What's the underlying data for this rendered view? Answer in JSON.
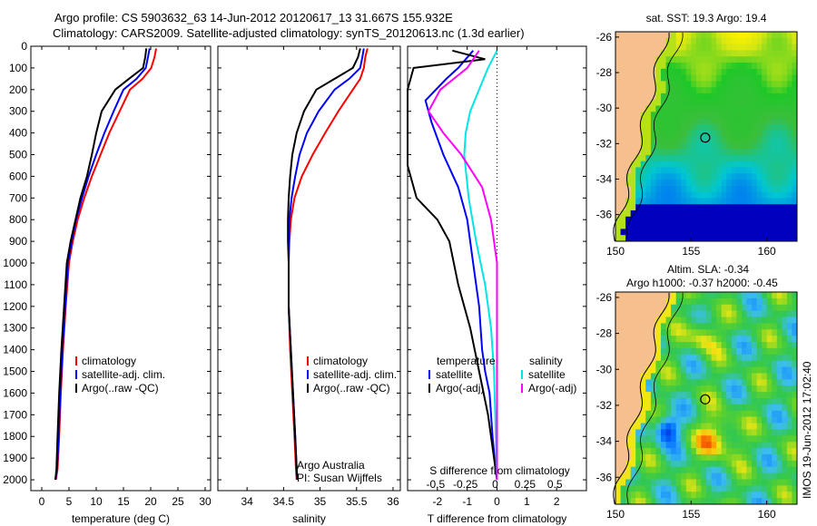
{
  "header": {
    "line1": "Argo profile: CS 5903632_63 14-Jun-2012 20120617_13 31.667S 155.932E",
    "line2": "Climatology: CARS2009. Satellite-adjusted climatology: synTS_20120613.nc (1.3d earlier)"
  },
  "colors": {
    "climatology": "#ff0000",
    "satellite": "#0000ff",
    "argo": "#000000",
    "sal_satellite": "#00e5e5",
    "sal_argo": "#ff00ff",
    "land": "#f5c08e"
  },
  "chart_data": [
    {
      "type": "line",
      "id": "temperature",
      "xlabel": "temperature (deg C)",
      "ylabel": "",
      "xlim": [
        -2,
        31
      ],
      "ylim": [
        0,
        2050
      ],
      "xticks": [
        0,
        5,
        10,
        15,
        20,
        25,
        30
      ],
      "yticks": [
        0,
        100,
        200,
        300,
        400,
        500,
        600,
        700,
        800,
        900,
        1000,
        1100,
        1200,
        1300,
        1400,
        1500,
        1600,
        1700,
        1800,
        1900,
        2000
      ],
      "legend": [
        "climatology",
        "satellite-adj. clim.",
        "Argo(..raw -QC)"
      ],
      "series": [
        {
          "name": "climatology",
          "color": "#ff0000",
          "x": [
            21,
            20.7,
            20.1,
            18.5,
            16.2,
            14.3,
            12.4,
            10.8,
            9.2,
            7.8,
            6.6,
            5.7,
            5,
            4.4,
            3.9,
            3.5,
            3.2,
            2.9,
            2.6
          ],
          "y": [
            10,
            50,
            100,
            150,
            200,
            300,
            400,
            500,
            600,
            700,
            800,
            900,
            1000,
            1200,
            1400,
            1600,
            1800,
            1950,
            2000
          ]
        },
        {
          "name": "satellite-adj. clim.",
          "color": "#0000ff",
          "x": [
            19.8,
            19.5,
            19.1,
            17.4,
            15,
            13.2,
            11.5,
            10,
            8.6,
            7.4,
            6.3,
            5.5,
            4.8,
            4.3,
            3.8,
            3.4,
            3.1,
            2.8,
            2.5
          ],
          "y": [
            10,
            50,
            100,
            150,
            200,
            300,
            400,
            500,
            600,
            700,
            800,
            900,
            1000,
            1200,
            1400,
            1600,
            1800,
            1950,
            2000
          ]
        },
        {
          "name": "Argo(..raw -QC)",
          "color": "#000000",
          "x": [
            19.2,
            19,
            18.6,
            16,
            13.5,
            11,
            10,
            9.2,
            8.3,
            7.1,
            6.2,
            5.3,
            4.6,
            4.1,
            3.6,
            3.2,
            2.9,
            2.7,
            2.5
          ],
          "y": [
            10,
            50,
            100,
            150,
            200,
            300,
            400,
            500,
            600,
            700,
            800,
            900,
            1000,
            1200,
            1400,
            1600,
            1800,
            1950,
            2000
          ]
        }
      ]
    },
    {
      "type": "line",
      "id": "salinity",
      "xlabel": "salinity",
      "ylabel": "",
      "xlim": [
        33.6,
        36.1
      ],
      "ylim": [
        0,
        2050
      ],
      "xticks": [
        34,
        34.5,
        35,
        35.5,
        36
      ],
      "legend": [
        "climatology",
        "satellite-adj. clim.",
        "Argo(..raw -QC)"
      ],
      "series": [
        {
          "name": "climatology",
          "color": "#ff0000",
          "x": [
            35.65,
            35.62,
            35.6,
            35.55,
            35.45,
            35.25,
            35.07,
            34.9,
            34.75,
            34.65,
            34.6,
            34.58,
            34.57,
            34.57,
            34.59,
            34.62,
            34.65,
            34.67,
            34.68
          ],
          "y": [
            10,
            50,
            100,
            150,
            200,
            300,
            400,
            500,
            600,
            700,
            800,
            900,
            1000,
            1200,
            1400,
            1600,
            1800,
            1950,
            2000
          ]
        },
        {
          "name": "satellite-adj. clim.",
          "color": "#0000ff",
          "x": [
            35.6,
            35.58,
            35.55,
            35.4,
            35.2,
            34.98,
            34.82,
            34.72,
            34.66,
            34.61,
            34.58,
            34.57,
            34.57,
            34.57,
            34.6,
            34.63,
            34.66,
            34.68,
            34.69
          ],
          "y": [
            10,
            50,
            100,
            150,
            200,
            300,
            400,
            500,
            600,
            700,
            800,
            900,
            1000,
            1200,
            1400,
            1600,
            1800,
            1950,
            2000
          ]
        },
        {
          "name": "Argo(..raw -QC)",
          "color": "#000000",
          "x": [
            35.55,
            35.52,
            35.45,
            35.2,
            34.95,
            34.78,
            34.68,
            34.62,
            34.59,
            34.57,
            34.56,
            34.56,
            34.57,
            34.57,
            34.6,
            34.63,
            34.66,
            34.68,
            34.69
          ],
          "y": [
            10,
            50,
            100,
            150,
            200,
            300,
            400,
            500,
            600,
            700,
            800,
            900,
            1000,
            1200,
            1400,
            1600,
            1800,
            1950,
            2000
          ]
        }
      ],
      "credit": [
        "Argo Australia",
        "PI: Susan Wijffels"
      ]
    },
    {
      "type": "line",
      "id": "difference",
      "xlabel": "T difference from climatology",
      "xlabel_top": "S difference from climatology",
      "xlim": [
        -3,
        3
      ],
      "ylim": [
        0,
        2050
      ],
      "xticks": [
        -2,
        -1,
        0,
        1,
        2
      ],
      "xticks_s": [
        "-0.5",
        "-0.25",
        "0",
        "0.25",
        "0.5"
      ],
      "legend_temperature": {
        "title": "temperature",
        "items": [
          "satellite",
          "Argo(-adj)"
        ]
      },
      "legend_salinity": {
        "title": "salinity",
        "items": [
          "satellite",
          "Argo(-adj)"
        ]
      },
      "series": [
        {
          "name": "T satellite",
          "color": "#0000ff",
          "x": [
            -0.8,
            -1.3,
            -1.7,
            -2.4,
            -2.2,
            -1.8,
            -1.3,
            -1,
            -0.8,
            -0.6,
            -0.5,
            -0.4,
            -0.25,
            -0.15,
            -0.05,
            0
          ],
          "y": [
            20,
            100,
            150,
            250,
            350,
            500,
            650,
            800,
            1000,
            1200,
            1400,
            1500,
            1600,
            1800,
            1950,
            2000
          ]
        },
        {
          "name": "T Argo(-adj)",
          "color": "#000000",
          "x": [
            -1.5,
            -0.4,
            -2.8,
            -3,
            -3,
            -2.7,
            -2,
            -1.6,
            -1.3,
            -0.9,
            -0.6,
            -0.3,
            -0.1,
            0
          ],
          "y": [
            20,
            60,
            100,
            200,
            550,
            700,
            800,
            900,
            1100,
            1300,
            1500,
            1700,
            1900,
            2000
          ]
        },
        {
          "name": "S satellite",
          "color": "#00e5e5",
          "x": [
            0,
            -0.3,
            -0.6,
            -0.9,
            -1.05,
            -1.1,
            -0.95,
            -0.7,
            -0.4,
            -0.2,
            -0.1,
            0
          ],
          "y": [
            20,
            100,
            200,
            300,
            400,
            500,
            700,
            900,
            1100,
            1300,
            1500,
            2000
          ]
        },
        {
          "name": "S Argo(-adj)",
          "color": "#ff00ff",
          "x": [
            -0.6,
            -1,
            -1.9,
            -2.3,
            -1.8,
            -1.2,
            -0.5,
            -0.2,
            0,
            0
          ],
          "y": [
            20,
            100,
            200,
            300,
            400,
            500,
            650,
            800,
            1000,
            2000
          ]
        }
      ]
    },
    {
      "type": "heatmap",
      "id": "sst-map",
      "title": "sat. SST: 19.3 Argo: 19.4",
      "xlim": [
        150,
        162
      ],
      "ylim": [
        -37.5,
        -25.7
      ],
      "xticks": [
        150,
        155,
        160
      ],
      "yticks": [
        -26,
        -28,
        -30,
        -32,
        -34,
        -36
      ],
      "argo_position": {
        "lon": 155.932,
        "lat": -31.667
      }
    },
    {
      "type": "heatmap",
      "id": "sla-map",
      "title": "Altim. SLA: -0.34",
      "subtitle": "Argo h1000: -0.37 h2000: -0.45",
      "xlim": [
        150,
        162
      ],
      "ylim": [
        -37.5,
        -25.7
      ],
      "xticks": [
        150,
        155,
        160
      ],
      "yticks": [
        -26,
        -28,
        -30,
        -32,
        -34,
        -36
      ],
      "argo_position": {
        "lon": 155.932,
        "lat": -31.667
      },
      "timestamp": "IMOS 19-Jun-2012 17:02:40"
    }
  ]
}
